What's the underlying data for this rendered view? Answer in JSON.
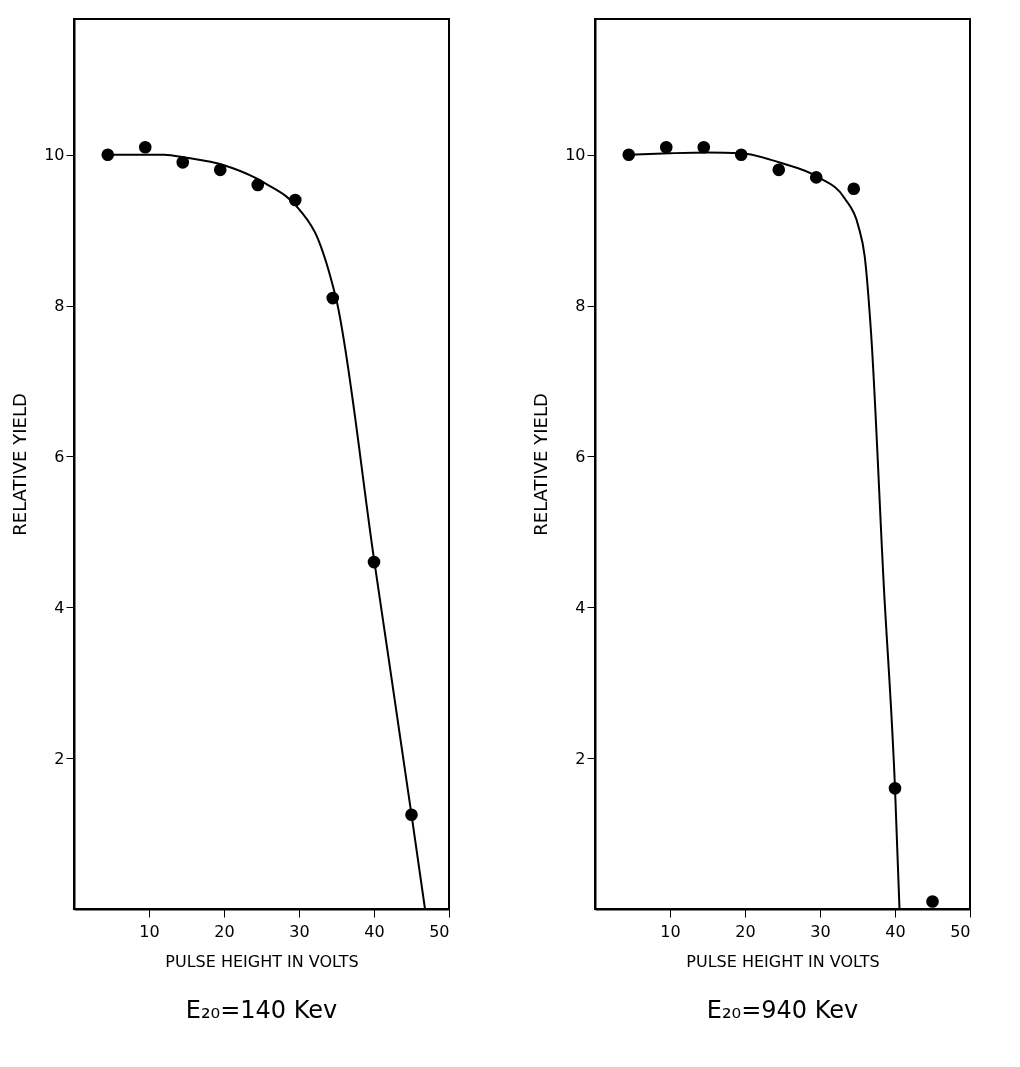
{
  "chart_data": [
    {
      "type": "scatter",
      "title": "E₂₀=140 Kev",
      "xlabel": "PULSE HEIGHT IN VOLTS",
      "ylabel": "RELATIVE YIELD",
      "xlim": [
        0,
        50
      ],
      "ylim": [
        0,
        11.8
      ],
      "xticks": [
        10,
        20,
        30,
        40,
        50
      ],
      "yticks": [
        2,
        4,
        6,
        8,
        10
      ],
      "grid": false,
      "series": [
        {
          "color": "#000000",
          "marker": "circle",
          "x": [
            4.5,
            9.5,
            14.5,
            19.5,
            24.5,
            29.5,
            34.5,
            40,
            45
          ],
          "values": [
            10.0,
            10.1,
            9.9,
            9.8,
            9.6,
            9.4,
            8.1,
            4.6,
            1.25
          ]
        },
        {
          "type": "line",
          "color": "#000000",
          "marker": "none",
          "line_style": "solid",
          "x": [
            4.5,
            8,
            12,
            15,
            20,
            25.5,
            30,
            32.5,
            34,
            35,
            40,
            45,
            46.8
          ],
          "values": [
            10.0,
            10.0,
            10.0,
            9.96,
            9.86,
            9.62,
            9.28,
            8.89,
            8.45,
            8.07,
            4.64,
            1.25,
            0
          ]
        }
      ]
    },
    {
      "type": "scatter",
      "title": "E₂₀=940 Kev",
      "xlabel": "PULSE HEIGHT IN VOLTS",
      "ylabel": "RELATIVE YIELD",
      "xlim": [
        0,
        50
      ],
      "ylim": [
        0,
        11.8
      ],
      "xticks": [
        10,
        20,
        30,
        40,
        50
      ],
      "yticks": [
        2,
        4,
        6,
        8,
        10
      ],
      "grid": false,
      "series": [
        {
          "color": "#000000",
          "marker": "circle",
          "x": [
            4.5,
            9.5,
            14.5,
            19.5,
            24.5,
            29.5,
            34.5,
            40,
            45
          ],
          "values": [
            10.0,
            10.1,
            10.1,
            10.0,
            9.8,
            9.7,
            9.55,
            1.6,
            0.1
          ]
        },
        {
          "type": "line",
          "color": "#000000",
          "marker": "none",
          "line_style": "solid",
          "x": [
            4.5,
            10,
            15,
            19.5,
            24.5,
            29.8,
            33.3,
            35.1,
            36,
            36.8,
            38.5,
            40,
            40.6
          ],
          "values": [
            10.0,
            10.02,
            10.03,
            10.02,
            9.9,
            9.7,
            9.42,
            9.06,
            8.62,
            7.65,
            4.3,
            1.6,
            0
          ]
        }
      ]
    }
  ]
}
